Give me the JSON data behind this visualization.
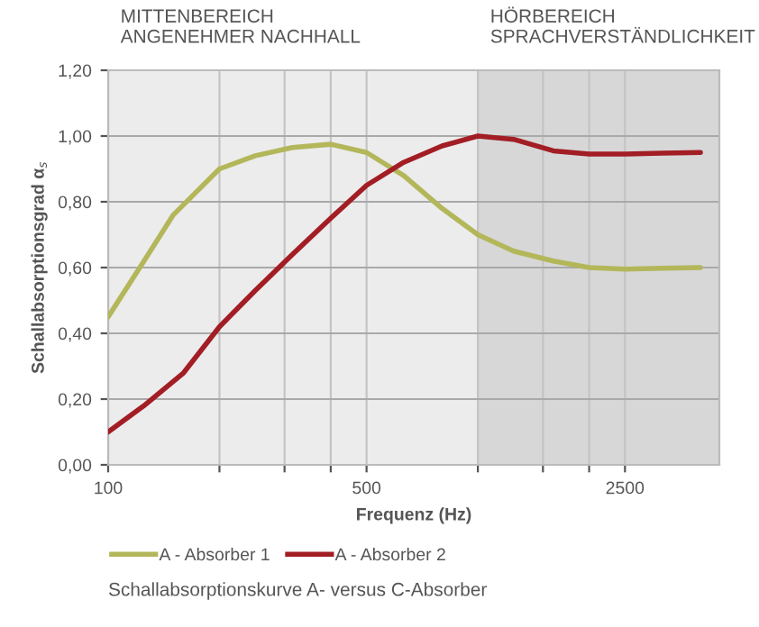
{
  "chart_data": {
    "type": "line",
    "xlabel": "Frequenz (Hz)",
    "ylabel": "Schallabsorptionsgrad α$_{s}$",
    "x": [
      100,
      125,
      160,
      200,
      250,
      315,
      400,
      500,
      630,
      800,
      1000,
      1250,
      1600,
      2000,
      2500,
      3150,
      4000
    ],
    "series": [
      {
        "name": "A - Absorber 1",
        "color": "#b3b75a",
        "x": [
          100,
          125,
          150,
          200,
          250,
          315,
          400,
          500,
          630,
          800,
          1000,
          1250,
          1600,
          2000,
          2500,
          3150,
          4000
        ],
        "values": [
          0.45,
          0.62,
          0.76,
          0.9,
          0.94,
          0.965,
          0.975,
          0.95,
          0.88,
          0.78,
          0.7,
          0.65,
          0.62,
          0.6,
          0.595,
          0.598,
          0.6
        ]
      },
      {
        "name": "A - Absorber 2",
        "color": "#a21d24",
        "values": [
          0.1,
          0.18,
          0.28,
          0.42,
          0.53,
          0.64,
          0.75,
          0.85,
          0.92,
          0.97,
          1.0,
          0.99,
          0.955,
          0.945,
          0.945,
          0.948,
          0.95
        ]
      }
    ],
    "log": "x",
    "xlim": [
      100,
      4500
    ],
    "xticks": [
      100,
      {
        "value": 200,
        "label": null
      },
      {
        "value": 300,
        "label": null
      },
      {
        "value": 400,
        "label": null
      },
      500,
      {
        "value": 1000,
        "label": null
      },
      {
        "value": 1500,
        "label": null
      },
      {
        "value": 2000,
        "label": null
      },
      2500
    ],
    "ylim": [
      0,
      1.2
    ],
    "yticks": [
      {
        "value": 0,
        "label": "0,00"
      },
      {
        "value": 0.2,
        "label": "0,20"
      },
      {
        "value": 0.4,
        "label": "0,40"
      },
      {
        "value": 0.6,
        "label": "0,60"
      },
      {
        "value": 0.8,
        "label": "0,80"
      },
      {
        "value": 1.0,
        "label": "1,00"
      },
      {
        "value": 1.2,
        "label": "1,20"
      }
    ],
    "bands": [
      {
        "axis": "x",
        "from": 100,
        "to": 1000,
        "label": "MITTENBEREICH\nANGENEHMER NACHHALL",
        "color": "#ececec"
      },
      {
        "axis": "x",
        "from": 1000,
        "to": 4500,
        "label": "HÖRBEREICH\nSPRACHVERSTÄNDLICHKEIT",
        "color": "#d7d7d7"
      }
    ],
    "grid": true,
    "legend": "bottom",
    "marker": "none",
    "line_style": "solid",
    "annotations": [
      "Schallabsorptionskurve A- versus C-Absorber"
    ]
  }
}
